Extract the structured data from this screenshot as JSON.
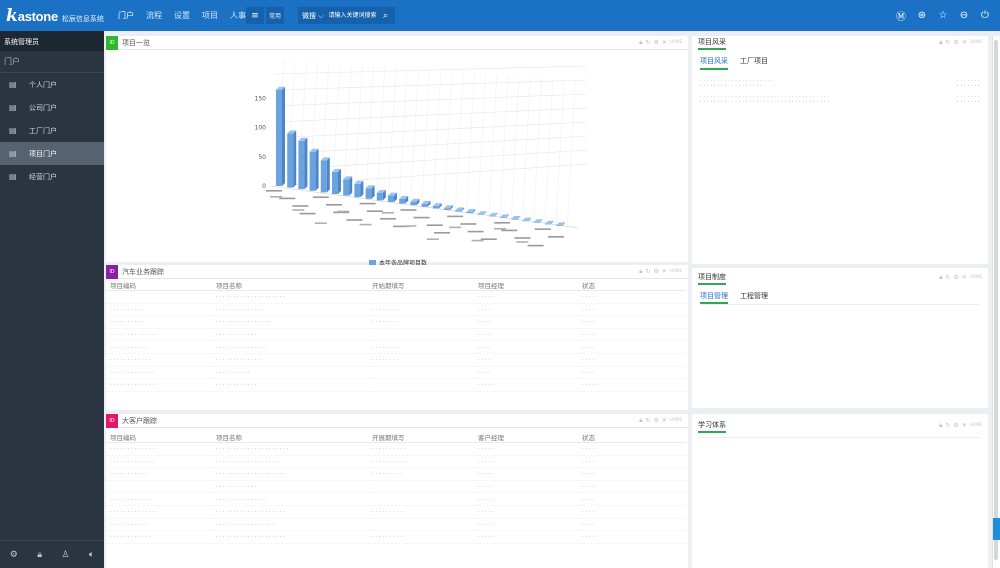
{
  "app": {
    "logo_k": "k",
    "logo_text": "astone",
    "logo_sub": "松辰信息系统"
  },
  "nav": [
    {
      "label": "门户",
      "active": true
    },
    {
      "label": "流程",
      "active": false
    },
    {
      "label": "设置",
      "active": false
    },
    {
      "label": "项目",
      "active": false
    },
    {
      "label": "人事",
      "active": false
    }
  ],
  "toolbar": {
    "menu_icon": "hamburger-icon",
    "more_label": "常用",
    "search_type": "微搜 ⌵",
    "search_placeholder": "请输入关键词搜索"
  },
  "top_icons": [
    "user-icon",
    "help-icon",
    "star-icon",
    "minus-icon",
    "power-icon"
  ],
  "sidebar": {
    "user": "系统管理员",
    "search_label": "门户",
    "items": [
      {
        "label": "个人门户",
        "active": false
      },
      {
        "label": "公司门户",
        "active": false
      },
      {
        "label": "工厂门户",
        "active": false
      },
      {
        "label": "项目门户",
        "active": true
      },
      {
        "label": "经营门户",
        "active": false
      }
    ],
    "bottom_icons": [
      "settings-icon",
      "lock-icon",
      "shirt-icon",
      "sound-icon"
    ]
  },
  "panels": {
    "project_list": {
      "tag": "ID",
      "title": "项目一览",
      "home": "HOME",
      "tag_color": "#2eb82e"
    },
    "auto_follow": {
      "tag": "ID",
      "title": "汽车业务跟踪",
      "home": "HOME",
      "tag_color": "#8b1fa3",
      "columns": [
        "项目编码",
        "项目名称",
        "开始期填写",
        "项目经理",
        "状态"
      ],
      "rows": [
        [
          "",
          "· · · · · · · · · · · · · · · · · · · ·",
          "",
          "· · · · ·",
          "· · · ·"
        ],
        [
          "· · · · · · · · · ·",
          "· · · · · · · · · · · · · ·",
          "· · · · · · · ·",
          "· · · ·",
          "· · · ·"
        ],
        [
          "· · · · · · · · · ·",
          "· · · · · · · · · · · · · · · ·",
          "· · · · · · · ·",
          "· · · ·",
          "· · · ·"
        ],
        [
          "· · · · · · · · · · · · ·",
          "· · · · · · · · · · · ·",
          "",
          "· · · ·",
          "· · · ·"
        ],
        [
          "· · · · · · · · · · ·",
          "· · · · · · · · · · · · · · ·",
          "· · · · · · · ·",
          "· · · ·",
          "· · · ·"
        ],
        [
          "· · · · · · · · · · · ·",
          "· · · · · · · · · · · · ·",
          "· · · · · · · ·",
          "· · · ·",
          "· · · ·"
        ],
        [
          "· · · · · · · · · · · · ·",
          "· · · · · · · · · ·",
          "",
          "· · · ·",
          "· · · ·"
        ],
        [
          "· · · · · · · · · · · · ·",
          "· · · · · · · · · · · ·",
          "",
          "· · · · ·",
          "· · · · ·"
        ]
      ]
    },
    "big_customer": {
      "tag": "ID",
      "title": "大客户跟踪",
      "home": "HOME",
      "tag_color": "#e0196a",
      "columns": [
        "项目编码",
        "项目名称",
        "开展期填写",
        "客户经理",
        "状态"
      ],
      "rows": [
        [
          "· · · · · · · · · · · · ·",
          "· · · · · · · · · · · · · · · · · · · · ·",
          "· · · · · · · · · ·",
          "· · · · ·",
          "· · · ·"
        ],
        [
          "· · · · · · · · · · · · ·",
          "· · · · · · · · · · · · · · · · · ·",
          "· · · · · · · · · ·",
          "· · · · ·",
          "· · · ·"
        ],
        [
          "· · · · · · · · · · ·",
          "· · · · · · · · · · · · · · · · · · · ·",
          "· · · · · · · · ·",
          "· · · · ·",
          "· · · ·"
        ],
        [
          "",
          "· · · · · · · · · · · ·",
          "",
          "· · · · ·",
          "· · · ·"
        ],
        [
          "· · · · · · · · · · · ·",
          "· · · · · · · · · · · · · · ·",
          "",
          "· · · · ·",
          "· · · ·"
        ],
        [
          "· · · · · · · · · · · · ·",
          "· · · · · · · · · · · · · · · · · · · ·",
          "· · · · · · · · ·",
          "· · · · ·",
          "· · · ·"
        ],
        [
          "· · · · · · · · · · ·",
          "· · · · · · · · · · · · · · · · ·",
          "",
          "· · · · ·",
          "· · · ·"
        ],
        [
          "· · · · · · · · · · · ·",
          "· · · · · · · · · · · · · · · · · · · ·",
          "· · · · · · · · ·",
          "· · · · ·",
          "· · · ·"
        ]
      ]
    },
    "project_style": {
      "title": "项目风采",
      "tabs": [
        {
          "label": "项目风采",
          "active": true
        },
        {
          "label": "工厂项目",
          "active": false
        }
      ],
      "rows": [
        [
          "· · · · · · · · · · · · · · · · · · · · ·",
          "· · · · · · ·"
        ],
        [
          "· · · · · · · · · · · · · · · · · ·",
          "· · · · · · ·"
        ],
        [
          "· · · · · · · · · · · · · · · · · · · · · · · · · · · · · · · · · · · · ·",
          "· · · · · · ·"
        ],
        [
          "· · · · · · · · · · · · · · · · · · · · · · · · · · · · · · · · · · · · ·",
          "· · · · · · ·"
        ]
      ]
    },
    "project_system": {
      "title": "项目制度",
      "tabs": [
        {
          "label": "项目管理",
          "active": true
        },
        {
          "label": "工程管理",
          "active": false
        }
      ]
    },
    "learning": {
      "title": "学习体系"
    }
  },
  "chart_data": {
    "type": "bar",
    "title": "",
    "legend": "本年各品牌项目数",
    "legend_position": "bottom",
    "yticks": [
      0,
      50,
      100,
      150
    ],
    "ylim": [
      0,
      180
    ],
    "grid": true,
    "values": [
      165,
      93,
      83,
      67,
      55,
      38,
      28,
      23,
      18,
      13,
      11,
      8,
      6,
      5,
      4,
      3,
      2,
      2,
      1,
      1,
      1,
      1,
      1,
      1,
      1,
      1
    ],
    "color": "#6aa3df"
  }
}
